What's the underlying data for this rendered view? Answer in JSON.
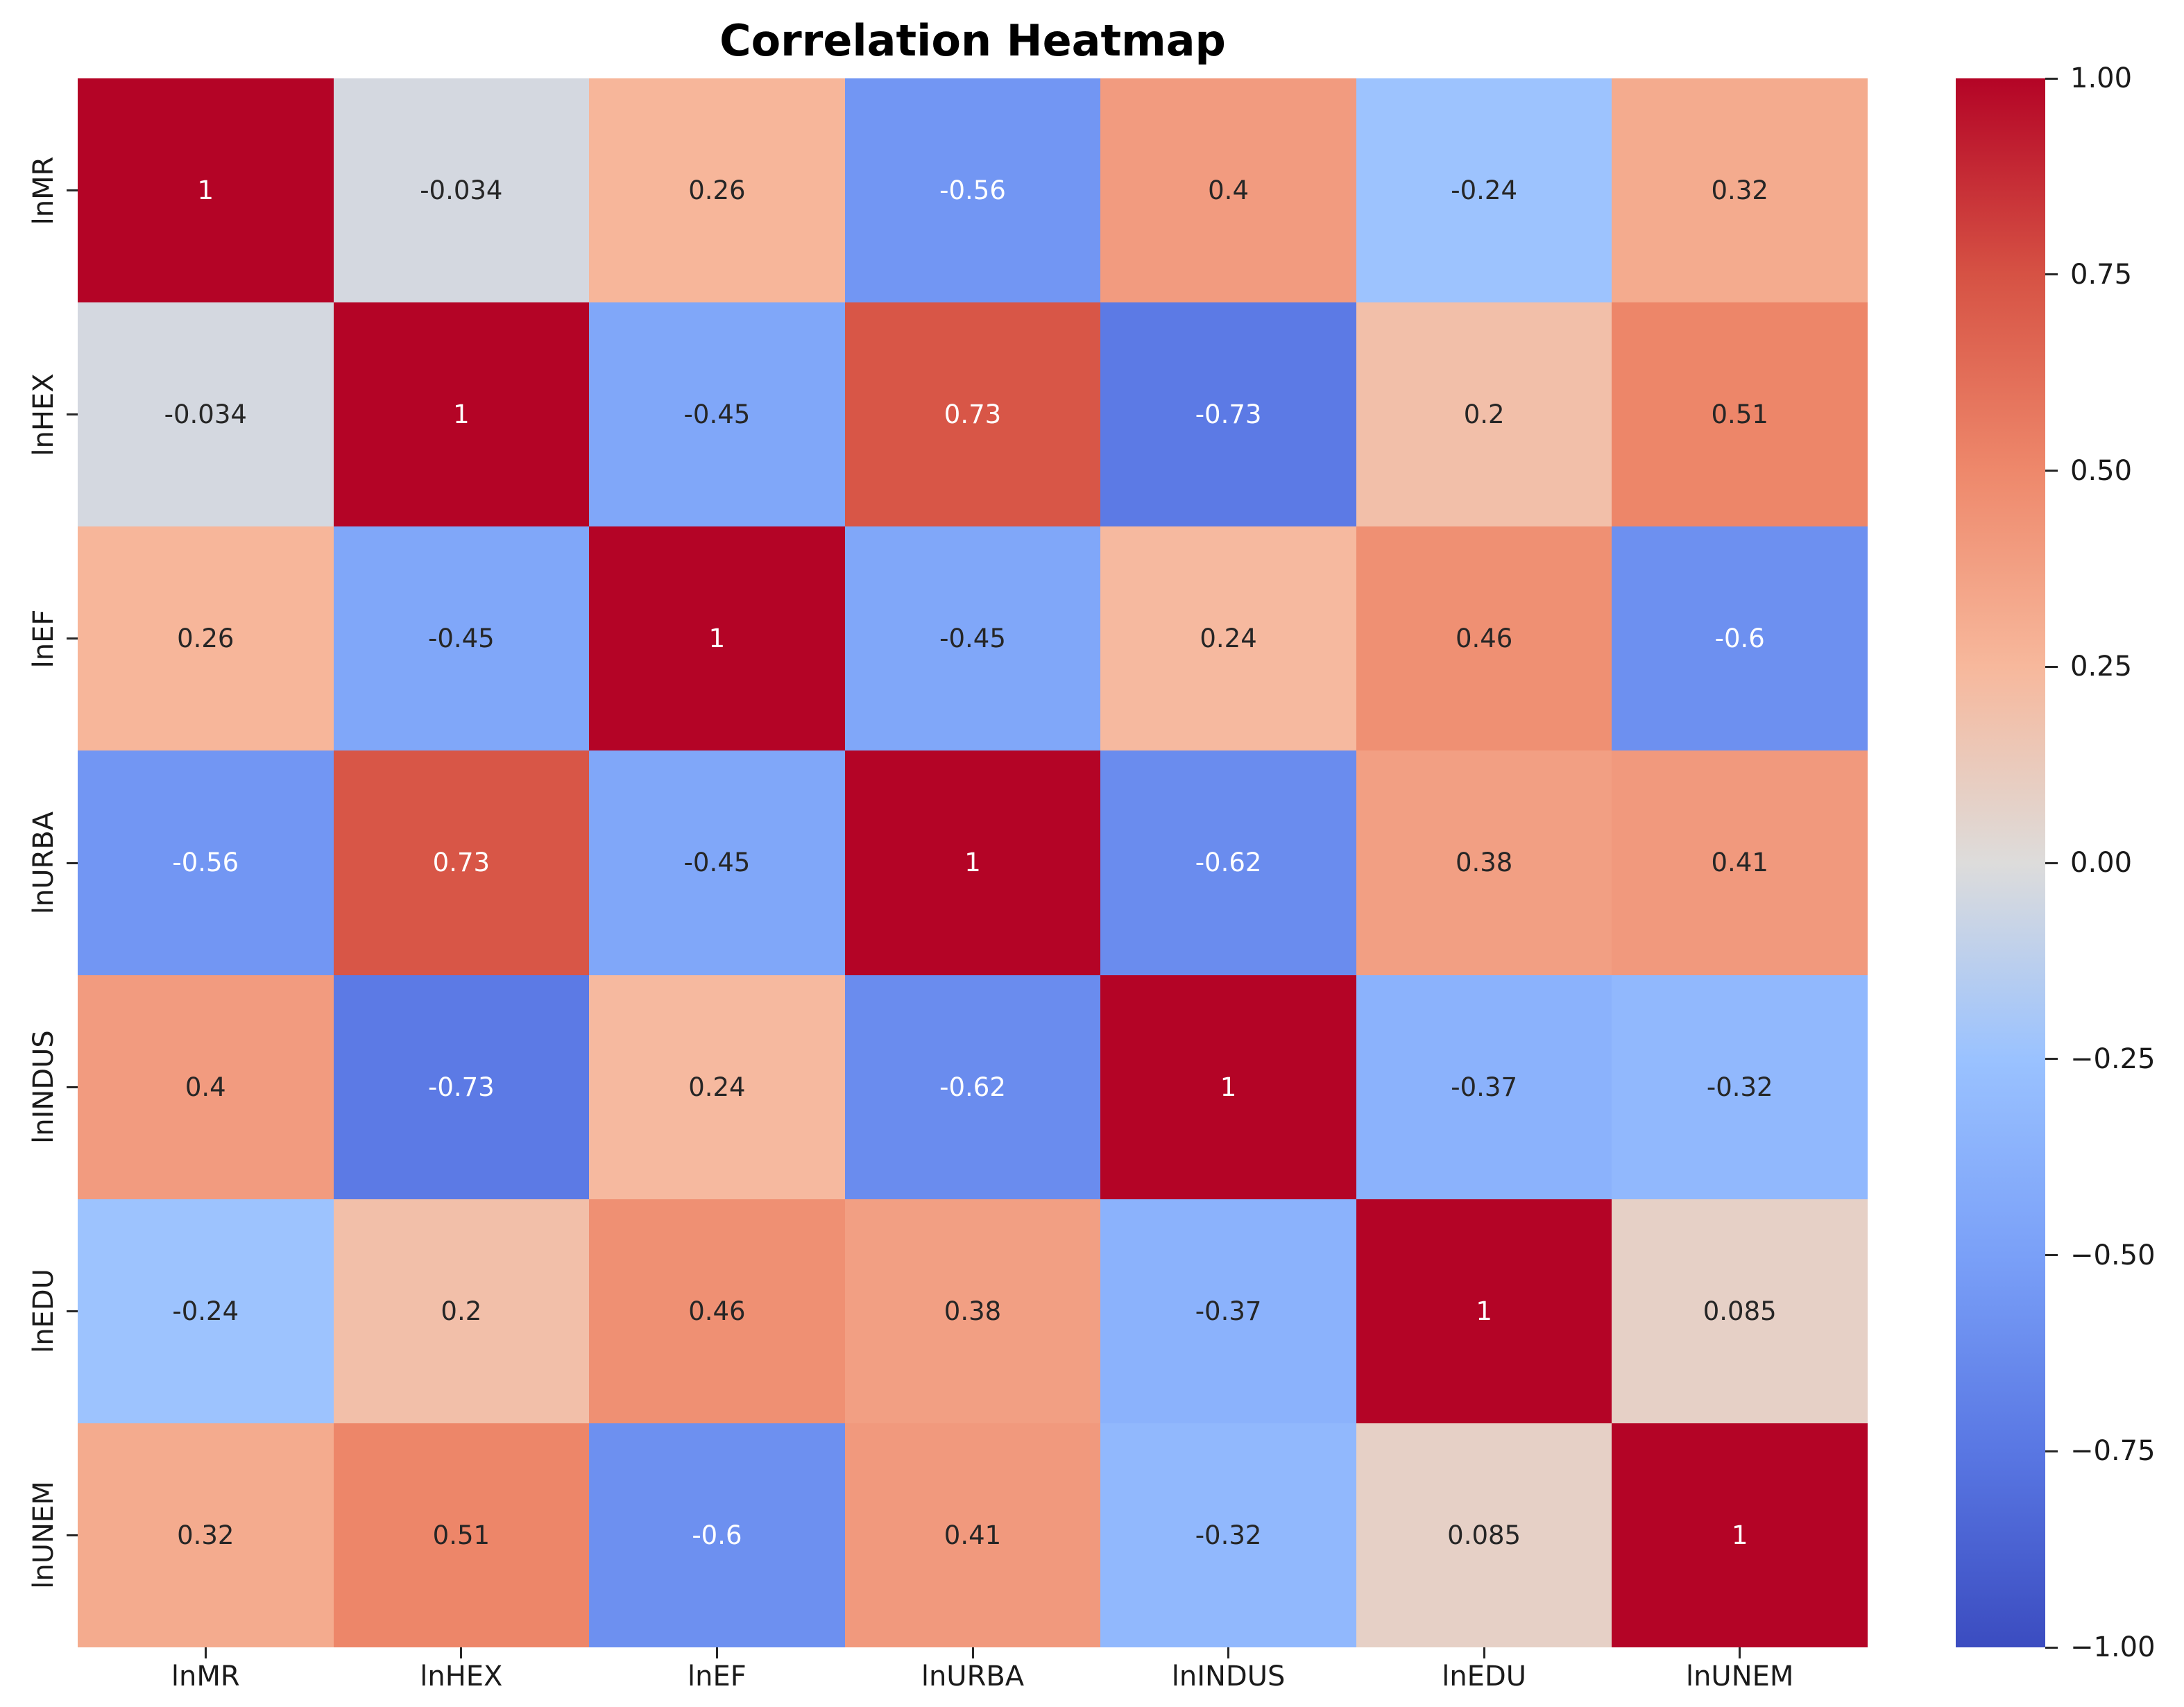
{
  "figure": {
    "title": "Correlation Heatmap"
  },
  "chart_data": {
    "type": "heatmap",
    "title": "Correlation Heatmap",
    "categories": [
      "lnMR",
      "lnHEX",
      "lnEF",
      "lnURBA",
      "lnINDUS",
      "lnEDU",
      "lnUNEM"
    ],
    "x_tick_labels": [
      "lnMR",
      "lnHEX",
      "lnEF",
      "lnURBA",
      "lnINDUS",
      "lnEDU",
      "lnUNEM"
    ],
    "y_tick_labels": [
      "lnMR",
      "lnHEX",
      "lnEF",
      "lnURBA",
      "lnINDUS",
      "lnEDU",
      "lnUNEM"
    ],
    "matrix": [
      [
        "1",
        "-0.034",
        "0.26",
        "-0.56",
        "0.4",
        "-0.24",
        "0.32"
      ],
      [
        "-0.034",
        "1",
        "-0.45",
        "0.73",
        "-0.73",
        "0.2",
        "0.51"
      ],
      [
        "0.26",
        "-0.45",
        "1",
        "-0.45",
        "0.24",
        "0.46",
        "-0.6"
      ],
      [
        "-0.56",
        "0.73",
        "-0.45",
        "1",
        "-0.62",
        "0.38",
        "0.41"
      ],
      [
        "0.4",
        "-0.73",
        "0.24",
        "-0.62",
        "1",
        "-0.37",
        "-0.32"
      ],
      [
        "-0.24",
        "0.2",
        "0.46",
        "0.38",
        "-0.37",
        "1",
        "0.085"
      ],
      [
        "0.32",
        "0.51",
        "-0.6",
        "0.41",
        "-0.32",
        "0.085",
        "1"
      ]
    ],
    "value_range": [
      -1,
      1
    ],
    "grid": false,
    "colormap": {
      "name": "coolwarm",
      "anchors": [
        {
          "t": 0.0,
          "hex": "#3b4cc0"
        },
        {
          "t": 0.125,
          "hex": "#5977e3"
        },
        {
          "t": 0.25,
          "hex": "#7aa0f8"
        },
        {
          "t": 0.375,
          "hex": "#9ac2ff"
        },
        {
          "t": 0.5,
          "hex": "#dddcdb"
        },
        {
          "t": 0.625,
          "hex": "#f7b89c"
        },
        {
          "t": 0.75,
          "hex": "#ee886b"
        },
        {
          "t": 0.875,
          "hex": "#d65244"
        },
        {
          "t": 1.0,
          "hex": "#b40426"
        }
      ],
      "annotation_text_dark": "#262626",
      "annotation_text_light": "#ffffff"
    },
    "colorbar": {
      "position": "right",
      "tick_labels": [
        "1.00",
        "0.75",
        "0.50",
        "0.25",
        "0.00",
        "−0.25",
        "−0.50",
        "−0.75",
        "−1.00"
      ]
    }
  }
}
